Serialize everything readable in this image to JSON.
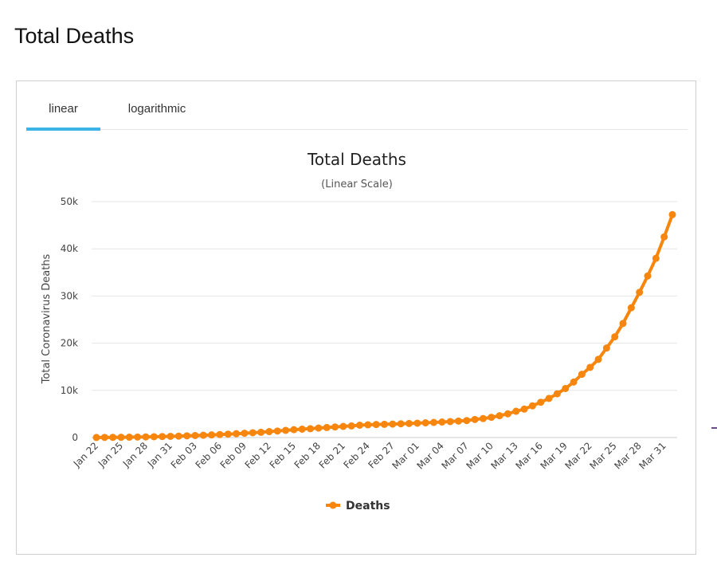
{
  "page": {
    "heading": "Total Deaths"
  },
  "tabs": [
    {
      "label": "linear",
      "active": true
    },
    {
      "label": "logarithmic",
      "active": false
    }
  ],
  "colors": {
    "series": "#f7860f",
    "tab_active": "#3cb4e5",
    "grid": "#e6e6e6"
  },
  "chart_data": {
    "type": "line",
    "title": "Total Deaths",
    "subtitle": "(Linear Scale)",
    "ylabel": "Total Coronavirus Deaths",
    "xlabel": "",
    "ylim": [
      0,
      50000
    ],
    "yticks": [
      0,
      10000,
      20000,
      30000,
      40000,
      50000
    ],
    "ytick_labels": [
      "0",
      "10k",
      "20k",
      "30k",
      "40k",
      "50k"
    ],
    "xtick_labels": [
      "Jan 22",
      "Jan 25",
      "Jan 28",
      "Jan 31",
      "Feb 03",
      "Feb 06",
      "Feb 09",
      "Feb 12",
      "Feb 15",
      "Feb 18",
      "Feb 21",
      "Feb 24",
      "Feb 27",
      "Mar 01",
      "Mar 04",
      "Mar 07",
      "Mar 10",
      "Mar 13",
      "Mar 16",
      "Mar 19",
      "Mar 22",
      "Mar 25",
      "Mar 28",
      "Mar 31"
    ],
    "grid": true,
    "legend": "bottom-center",
    "x": [
      "Jan 22",
      "Jan 23",
      "Jan 24",
      "Jan 25",
      "Jan 26",
      "Jan 27",
      "Jan 28",
      "Jan 29",
      "Jan 30",
      "Jan 31",
      "Feb 01",
      "Feb 02",
      "Feb 03",
      "Feb 04",
      "Feb 05",
      "Feb 06",
      "Feb 07",
      "Feb 08",
      "Feb 09",
      "Feb 10",
      "Feb 11",
      "Feb 12",
      "Feb 13",
      "Feb 14",
      "Feb 15",
      "Feb 16",
      "Feb 17",
      "Feb 18",
      "Feb 19",
      "Feb 20",
      "Feb 21",
      "Feb 22",
      "Feb 23",
      "Feb 24",
      "Feb 25",
      "Feb 26",
      "Feb 27",
      "Feb 28",
      "Feb 29",
      "Mar 01",
      "Mar 02",
      "Mar 03",
      "Mar 04",
      "Mar 05",
      "Mar 06",
      "Mar 07",
      "Mar 08",
      "Mar 09",
      "Mar 10",
      "Mar 11",
      "Mar 12",
      "Mar 13",
      "Mar 14",
      "Mar 15",
      "Mar 16",
      "Mar 17",
      "Mar 18",
      "Mar 19",
      "Mar 20",
      "Mar 21",
      "Mar 22",
      "Mar 23",
      "Mar 24",
      "Mar 25",
      "Mar 26",
      "Mar 27",
      "Mar 28",
      "Mar 29",
      "Mar 30",
      "Mar 31",
      "Apr 01"
    ],
    "series": [
      {
        "name": "Deaths",
        "values": [
          17,
          25,
          41,
          56,
          80,
          106,
          132,
          170,
          213,
          259,
          304,
          362,
          426,
          492,
          565,
          638,
          724,
          813,
          910,
          1018,
          1115,
          1261,
          1383,
          1526,
          1669,
          1775,
          1873,
          2009,
          2126,
          2247,
          2360,
          2460,
          2618,
          2699,
          2763,
          2800,
          2858,
          2923,
          2977,
          3050,
          3117,
          3202,
          3285,
          3387,
          3494,
          3599,
          3827,
          4025,
          4296,
          4628,
          5026,
          5566,
          6037,
          6716,
          7483,
          8291,
          9276,
          10398,
          11761,
          13409,
          14867,
          16574,
          18972,
          21355,
          24184,
          27503,
          30779,
          34256,
          37982,
          42525,
          47251
        ]
      }
    ]
  }
}
